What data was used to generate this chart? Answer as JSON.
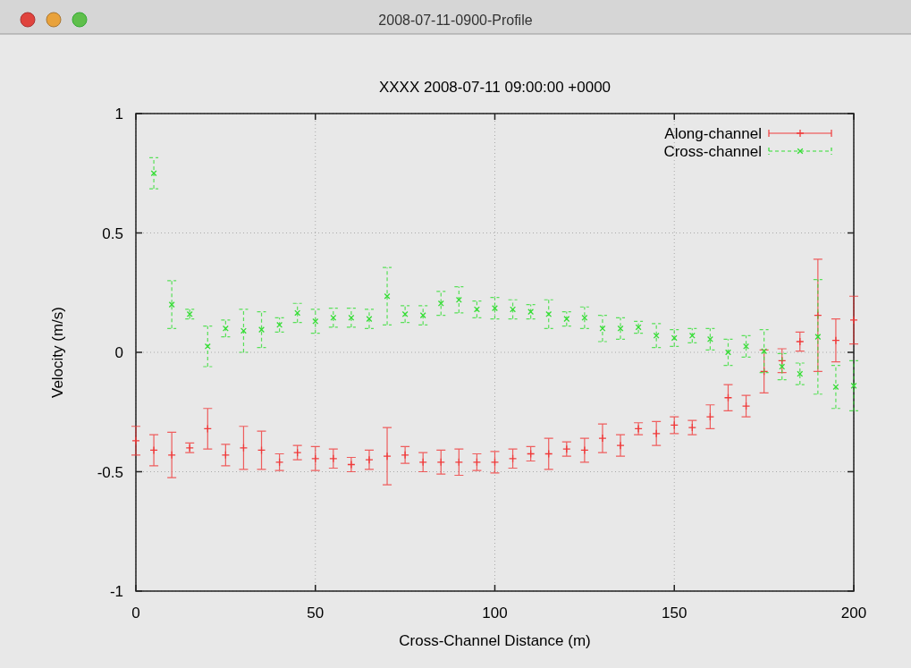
{
  "chart_data": {
    "type": "scatter",
    "title": "XXXX 2008-07-11 09:00:00 +0000",
    "xlabel": "Cross-Channel Distance (m)",
    "ylabel": "Velocity (m/s)",
    "annotations": [
      "2008-07-11-0900-Profile"
    ],
    "x": [
      0,
      5,
      10,
      15,
      20,
      25,
      30,
      35,
      40,
      45,
      50,
      55,
      60,
      65,
      70,
      75,
      80,
      85,
      90,
      95,
      100,
      105,
      110,
      115,
      120,
      125,
      130,
      135,
      140,
      145,
      150,
      155,
      160,
      165,
      170,
      175,
      180,
      185,
      190,
      195,
      200
    ],
    "series": [
      {
        "name": "Along-channel",
        "color": "#f03a3a",
        "marker": "cross",
        "line_style": "solid",
        "values": [
          -0.37,
          -0.41,
          -0.43,
          -0.4,
          -0.32,
          -0.43,
          -0.4,
          -0.41,
          -0.46,
          -0.42,
          -0.445,
          -0.445,
          -0.47,
          -0.45,
          -0.435,
          -0.43,
          -0.46,
          -0.46,
          -0.46,
          -0.46,
          -0.46,
          -0.445,
          -0.425,
          -0.425,
          -0.405,
          -0.41,
          -0.36,
          -0.39,
          -0.32,
          -0.34,
          -0.305,
          -0.315,
          -0.27,
          -0.19,
          -0.225,
          -0.08,
          -0.035,
          0.045,
          0.155,
          0.05,
          0.135
        ],
        "errors": [
          0.06,
          0.065,
          0.095,
          0.02,
          0.085,
          0.045,
          0.09,
          0.08,
          0.035,
          0.03,
          0.05,
          0.04,
          0.03,
          0.04,
          0.12,
          0.035,
          0.04,
          0.05,
          0.055,
          0.035,
          0.045,
          0.04,
          0.03,
          0.065,
          0.03,
          0.05,
          0.06,
          0.045,
          0.025,
          0.05,
          0.035,
          0.03,
          0.05,
          0.055,
          0.045,
          0.09,
          0.05,
          0.04,
          0.235,
          0.09,
          0.1
        ]
      },
      {
        "name": "Cross-channel",
        "color": "#33dd33",
        "marker": "cross",
        "line_style": "dashed",
        "x": [
          5,
          10,
          15,
          20,
          25,
          30,
          35,
          40,
          45,
          50,
          55,
          60,
          65,
          70,
          75,
          80,
          85,
          90,
          95,
          100,
          105,
          110,
          115,
          120,
          125,
          130,
          135,
          140,
          145,
          150,
          155,
          160,
          165,
          170,
          175,
          180,
          185,
          190,
          195,
          200
        ],
        "values": [
          0.75,
          0.2,
          0.16,
          0.025,
          0.1,
          0.09,
          0.095,
          0.115,
          0.165,
          0.13,
          0.145,
          0.145,
          0.14,
          0.235,
          0.16,
          0.155,
          0.205,
          0.22,
          0.18,
          0.185,
          0.18,
          0.17,
          0.16,
          0.14,
          0.145,
          0.1,
          0.1,
          0.105,
          0.07,
          0.06,
          0.07,
          0.055,
          0,
          0.025,
          0.005,
          -0.06,
          -0.09,
          0.065,
          -0.145,
          -0.14
        ],
        "errors": [
          0.065,
          0.1,
          0.02,
          0.085,
          0.035,
          0.09,
          0.075,
          0.03,
          0.04,
          0.05,
          0.04,
          0.04,
          0.04,
          0.12,
          0.035,
          0.04,
          0.05,
          0.055,
          0.035,
          0.045,
          0.04,
          0.03,
          0.06,
          0.03,
          0.045,
          0.055,
          0.045,
          0.025,
          0.05,
          0.035,
          0.03,
          0.045,
          0.055,
          0.045,
          0.09,
          0.055,
          0.045,
          0.24,
          0.09,
          0.105
        ]
      }
    ],
    "xlim": [
      0,
      200
    ],
    "xticks": [
      0,
      50,
      100,
      150,
      200
    ],
    "ylim": [
      -1,
      1
    ],
    "yticks": [
      -1,
      -0.5,
      0,
      0.5,
      1
    ],
    "grid": true,
    "legend": "top right"
  }
}
